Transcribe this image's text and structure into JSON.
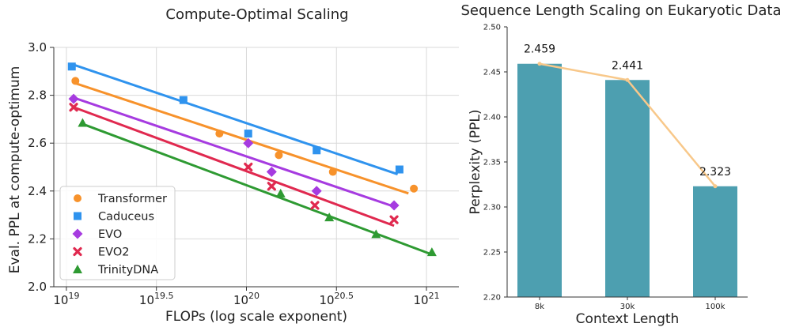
{
  "chart_data": [
    {
      "type": "scatter",
      "title": "Compute-Optimal Scaling",
      "xlabel": "FLOPs (log scale exponent)",
      "ylabel": "Eval. PPL at compute-optimum",
      "xlim": [
        18.93,
        21.18
      ],
      "ylim": [
        2.0,
        3.0
      ],
      "xticks": [
        {
          "value": 19.0,
          "base": "10",
          "exp": "19"
        },
        {
          "value": 19.5,
          "base": "10",
          "exp": "19.5"
        },
        {
          "value": 20.0,
          "base": "10",
          "exp": "20"
        },
        {
          "value": 20.5,
          "base": "10",
          "exp": "20.5"
        },
        {
          "value": 21.0,
          "base": "10",
          "exp": "21"
        }
      ],
      "yticks": [
        "2.0",
        "2.2",
        "2.4",
        "2.6",
        "2.8",
        "3.0"
      ],
      "grid": true,
      "legend_position": "bottom-left",
      "series": [
        {
          "name": "Transformer",
          "color": "#f7922b",
          "marker": "circle",
          "x": [
            19.05,
            19.85,
            20.18,
            20.48,
            20.93
          ],
          "y": [
            2.86,
            2.64,
            2.55,
            2.48,
            2.41
          ],
          "fit": [
            [
              19.05,
              2.85
            ],
            [
              20.9,
              2.39
            ]
          ]
        },
        {
          "name": "Caduceus",
          "color": "#2f93ee",
          "marker": "square",
          "x": [
            19.03,
            19.65,
            20.01,
            20.39,
            20.85
          ],
          "y": [
            2.92,
            2.78,
            2.64,
            2.57,
            2.49
          ],
          "fit": [
            [
              19.03,
              2.93
            ],
            [
              20.84,
              2.47
            ]
          ]
        },
        {
          "name": "EVO",
          "color": "#a63be0",
          "marker": "diamond",
          "x": [
            19.04,
            20.01,
            20.14,
            20.39,
            20.82
          ],
          "y": [
            2.785,
            2.6,
            2.48,
            2.4,
            2.34
          ],
          "fit": [
            [
              19.04,
              2.79
            ],
            [
              20.82,
              2.335
            ]
          ]
        },
        {
          "name": "EVO2",
          "color": "#e0294f",
          "marker": "x",
          "x": [
            19.04,
            20.01,
            20.14,
            20.38,
            20.82
          ],
          "y": [
            2.75,
            2.5,
            2.42,
            2.34,
            2.28
          ],
          "fit": [
            [
              19.04,
              2.75
            ],
            [
              20.82,
              2.255
            ]
          ]
        },
        {
          "name": "TrinityDNA",
          "color": "#2e9a32",
          "marker": "triangle",
          "x": [
            19.09,
            20.19,
            20.46,
            20.72,
            21.03
          ],
          "y": [
            2.685,
            2.39,
            2.29,
            2.22,
            2.145
          ],
          "fit": [
            [
              19.09,
              2.68
            ],
            [
              21.03,
              2.135
            ]
          ]
        }
      ]
    },
    {
      "type": "bar",
      "title": "Sequence Length Scaling on Eukaryotic Data",
      "xlabel": "Context Length",
      "ylabel": "Perplexity (PPL)",
      "categories": [
        "8k",
        "30k",
        "100k"
      ],
      "values": [
        2.459,
        2.441,
        2.323
      ],
      "value_labels": [
        "2.459",
        "2.441",
        "2.323"
      ],
      "ylim": [
        2.2,
        2.5
      ],
      "yticks": [
        "2.20",
        "2.25",
        "2.30",
        "2.35",
        "2.40",
        "2.45",
        "2.50"
      ],
      "bar_color": "#4d9fb0",
      "line_color": "#f8c88a",
      "grid": false
    }
  ]
}
